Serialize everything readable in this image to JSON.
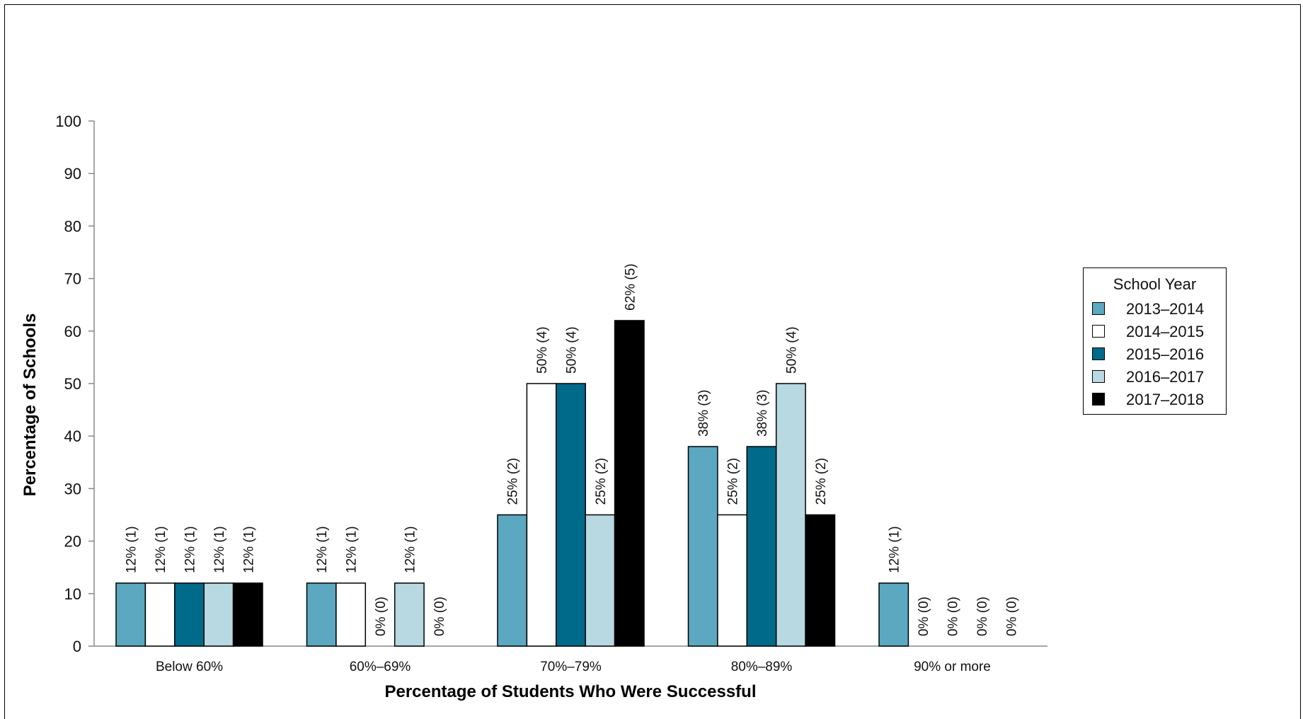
{
  "chart_data": {
    "type": "bar",
    "ylabel": "Percentage of Schools",
    "xlabel": "Percentage of Students Who Were Successful",
    "ylim": [
      0,
      100
    ],
    "yticks": [
      0,
      10,
      20,
      30,
      40,
      50,
      60,
      70,
      80,
      90,
      100
    ],
    "categories": [
      "Below 60%",
      "60%–69%",
      "70%–79%",
      "80%–89%",
      "90% or more"
    ],
    "legend": {
      "title": "School Year",
      "position": "right"
    },
    "series": [
      {
        "name": "2013–2014",
        "color": "#5ba8c0",
        "values": [
          12,
          12,
          25,
          38,
          12
        ],
        "labels": [
          "12% (1)",
          "12% (1)",
          "25% (2)",
          "38% (3)",
          "12% (1)"
        ]
      },
      {
        "name": "2014–2015",
        "color": "#ffffff",
        "values": [
          12,
          12,
          50,
          25,
          0
        ],
        "labels": [
          "12% (1)",
          "12% (1)",
          "50% (4)",
          "25% (2)",
          "0% (0)"
        ]
      },
      {
        "name": "2015–2016",
        "color": "#006a8b",
        "values": [
          12,
          0,
          50,
          38,
          0
        ],
        "labels": [
          "12% (1)",
          "0% (0)",
          "50% (4)",
          "38% (3)",
          "0% (0)"
        ]
      },
      {
        "name": "2016–2017",
        "color": "#b8d8e2",
        "values": [
          12,
          12,
          25,
          50,
          0
        ],
        "labels": [
          "12% (1)",
          "12% (1)",
          "25% (2)",
          "50% (4)",
          "0% (0)"
        ]
      },
      {
        "name": "2017–2018",
        "color": "#000000",
        "values": [
          12,
          0,
          62,
          25,
          0
        ],
        "labels": [
          "12% (1)",
          "0% (0)",
          "62% (5)",
          "25% (2)",
          "0% (0)"
        ]
      }
    ]
  }
}
